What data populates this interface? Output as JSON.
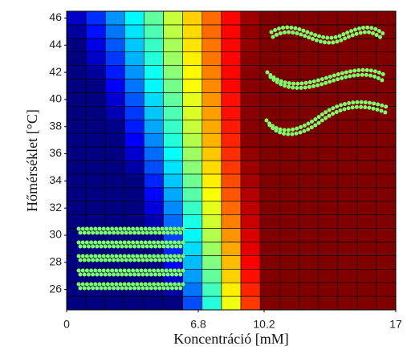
{
  "chart_data": {
    "type": "heatmap",
    "x_label": "Koncentráció [mM]",
    "y_label": "Hőmérséklet [°C]",
    "x": [
      0.5,
      1.5,
      2.5,
      3.5,
      4.5,
      5.5,
      6.5,
      7.5,
      8.5,
      9.5,
      10.5,
      11.5,
      12.5,
      13.5,
      14.5,
      15.5,
      16.5
    ],
    "y": [
      25,
      26,
      27,
      28,
      29,
      30,
      31,
      32,
      33,
      34,
      35,
      36,
      37,
      38,
      39,
      40,
      41,
      42,
      43,
      44,
      45,
      46
    ],
    "z": [
      [
        0,
        0,
        0,
        0,
        0,
        0,
        0.2,
        0.41,
        0.61,
        0.82,
        1,
        1,
        1,
        1,
        1,
        1,
        1
      ],
      [
        0,
        0,
        0,
        0,
        0,
        0.04,
        0.24,
        0.44,
        0.64,
        0.84,
        1,
        1,
        1,
        1,
        1,
        1,
        1
      ],
      [
        0,
        0,
        0,
        0,
        0,
        0.08,
        0.28,
        0.47,
        0.67,
        0.86,
        1,
        1,
        1,
        1,
        1,
        1,
        1
      ],
      [
        0,
        0,
        0,
        0,
        0,
        0.12,
        0.31,
        0.5,
        0.69,
        0.88,
        1,
        1,
        1,
        1,
        1,
        1,
        1
      ],
      [
        0,
        0,
        0,
        0,
        0,
        0.16,
        0.34,
        0.53,
        0.71,
        0.9,
        1,
        1,
        1,
        1,
        1,
        1,
        1
      ],
      [
        0,
        0,
        0,
        0,
        0.01,
        0.19,
        0.37,
        0.55,
        0.73,
        0.91,
        1,
        1,
        1,
        1,
        1,
        1,
        1
      ],
      [
        0,
        0,
        0,
        0,
        0.05,
        0.23,
        0.4,
        0.58,
        0.75,
        0.93,
        1,
        1,
        1,
        1,
        1,
        1,
        1
      ],
      [
        0,
        0,
        0,
        0,
        0.09,
        0.26,
        0.43,
        0.6,
        0.77,
        0.94,
        1,
        1,
        1,
        1,
        1,
        1,
        1
      ],
      [
        0,
        0,
        0,
        0,
        0.13,
        0.29,
        0.46,
        0.62,
        0.79,
        0.95,
        1,
        1,
        1,
        1,
        1,
        1,
        1
      ],
      [
        0,
        0,
        0,
        0,
        0.16,
        0.32,
        0.48,
        0.64,
        0.8,
        0.96,
        1,
        1,
        1,
        1,
        1,
        1,
        1
      ],
      [
        0,
        0,
        0,
        0.04,
        0.2,
        0.35,
        0.51,
        0.66,
        0.82,
        0.97,
        1,
        1,
        1,
        1,
        1,
        1,
        1
      ],
      [
        0,
        0,
        0,
        0.08,
        0.23,
        0.38,
        0.53,
        0.68,
        0.83,
        0.98,
        1,
        1,
        1,
        1,
        1,
        1,
        1
      ],
      [
        0,
        0,
        0,
        0.12,
        0.26,
        0.41,
        0.55,
        0.7,
        0.84,
        0.99,
        1,
        1,
        1,
        1,
        1,
        1,
        1
      ],
      [
        0,
        0,
        0.01,
        0.15,
        0.29,
        0.43,
        0.57,
        0.71,
        0.85,
        0.99,
        1,
        1,
        1,
        1,
        1,
        1,
        1
      ],
      [
        0,
        0,
        0.05,
        0.18,
        0.32,
        0.45,
        0.59,
        0.72,
        0.86,
        0.99,
        1,
        1,
        1,
        1,
        1,
        1,
        1
      ],
      [
        0,
        0,
        0.08,
        0.21,
        0.34,
        0.47,
        0.6,
        0.73,
        0.86,
        0.99,
        1,
        1,
        1,
        1,
        1,
        1,
        1
      ],
      [
        0,
        0,
        0.12,
        0.24,
        0.37,
        0.49,
        0.62,
        0.74,
        0.87,
        0.99,
        1,
        1,
        1,
        1,
        1,
        1,
        1
      ],
      [
        0,
        0.03,
        0.15,
        0.27,
        0.39,
        0.51,
        0.63,
        0.75,
        0.87,
        0.99,
        1,
        1,
        1,
        1,
        1,
        1,
        1
      ],
      [
        0,
        0.07,
        0.18,
        0.3,
        0.41,
        0.53,
        0.64,
        0.76,
        0.87,
        0.99,
        1,
        1,
        1,
        1,
        1,
        1,
        1
      ],
      [
        0,
        0.1,
        0.21,
        0.32,
        0.43,
        0.54,
        0.65,
        0.76,
        0.87,
        0.98,
        1,
        1,
        1,
        1,
        1,
        1,
        1
      ],
      [
        0.03,
        0.14,
        0.24,
        0.35,
        0.45,
        0.56,
        0.66,
        0.77,
        0.87,
        0.98,
        1,
        1,
        1,
        1,
        1,
        1,
        1
      ],
      [
        0.07,
        0.17,
        0.27,
        0.37,
        0.47,
        0.57,
        0.67,
        0.77,
        0.87,
        0.97,
        1,
        1,
        1,
        1,
        1,
        1,
        1
      ]
    ],
    "zlim": [
      0,
      1
    ],
    "colormap": "jet",
    "xlim": [
      0,
      17
    ],
    "xticks": [
      0,
      6.8,
      10.2,
      17
    ],
    "ylim": [
      24.5,
      46.5
    ],
    "yticks": [
      26,
      28,
      30,
      32,
      34,
      36,
      38,
      40,
      42,
      44,
      46
    ]
  }
}
